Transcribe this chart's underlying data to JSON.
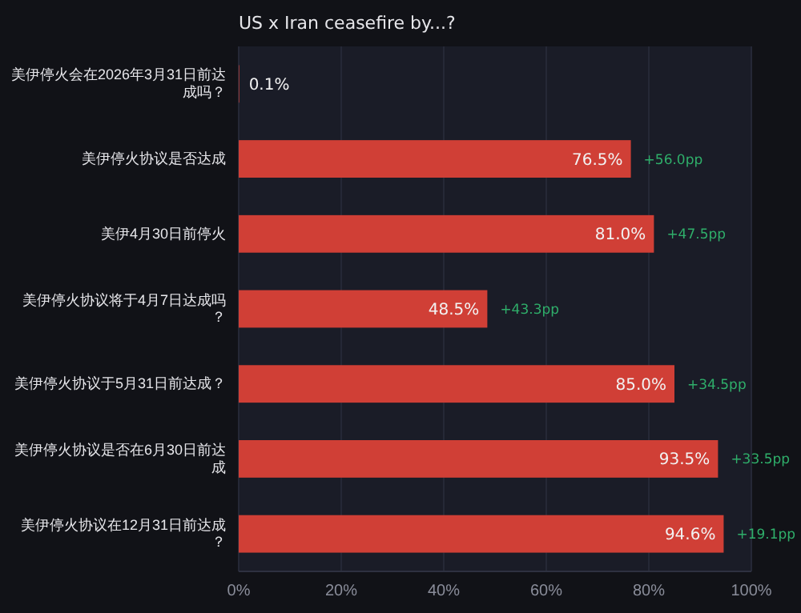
{
  "chart_data": {
    "type": "bar",
    "orientation": "horizontal",
    "title": "US x Iran ceasefire by...?",
    "categories": [
      "美伊停火会在2026年3月31日前达成吗？",
      "美伊停火协议是否达成",
      "美伊4月30日前停火",
      "美伊停火协议将于4月7日达成吗？",
      "美伊停火协议于5月31日前达成？",
      "美伊停火协议是否在6月30日前达成",
      "美伊停火协议在12月31日前达成？"
    ],
    "values": [
      0.1,
      76.5,
      81.0,
      48.5,
      85.0,
      93.5,
      94.6
    ],
    "value_labels": [
      "0.1%",
      "76.5%",
      "81.0%",
      "48.5%",
      "85.0%",
      "93.5%",
      "94.6%"
    ],
    "color": "#d03f36",
    "xlim": [
      0,
      100
    ],
    "xticks": [
      {
        "value": 0,
        "label": "0%"
      },
      {
        "value": 20,
        "label": "20%"
      },
      {
        "value": 40,
        "label": "40%"
      },
      {
        "value": 60,
        "label": "60%"
      },
      {
        "value": 80,
        "label": "80%"
      },
      {
        "value": 100,
        "label": "100%"
      }
    ],
    "grid": "x",
    "annotations": [
      {
        "text": "+56.0pp",
        "x": 76.5,
        "y": "美伊停火协议是否达成"
      },
      {
        "text": "+47.5pp",
        "x": 81.0,
        "y": "美伊4月30日前停火"
      },
      {
        "text": "+43.3pp",
        "x": 48.5,
        "y": "美伊停火协议将于4月7日达成吗？"
      },
      {
        "text": "+34.5pp",
        "x": 85.0,
        "y": "美伊停火协议于5月31日前达成？"
      },
      {
        "text": "+33.5pp",
        "x": 93.5,
        "y": "美伊停火协议是否在6月30日前达成"
      },
      {
        "text": "+19.1pp",
        "x": 94.6,
        "y": "美伊停火协议在12月31日前达成？"
      }
    ]
  }
}
